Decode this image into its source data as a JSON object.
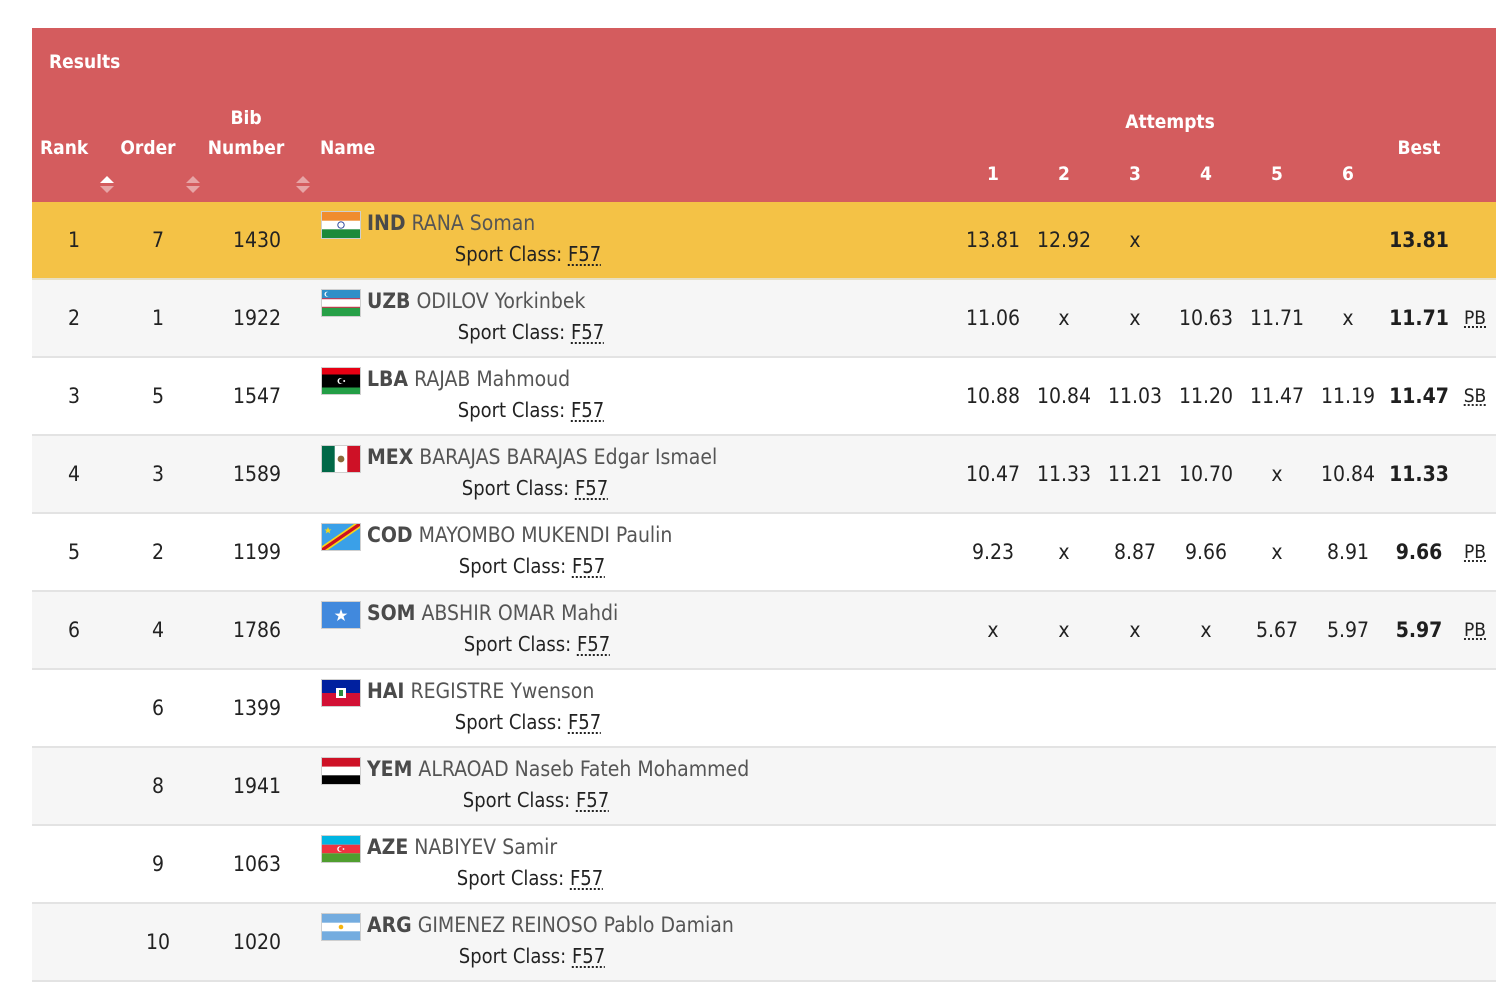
{
  "header": {
    "results_label": "Results",
    "rank": "Rank",
    "order": "Order",
    "bib_line1": "Bib",
    "bib_line2": "Number",
    "name": "Name",
    "attempts": "Attempts",
    "attempt_numbers": [
      "1",
      "2",
      "3",
      "4",
      "5",
      "6"
    ],
    "best": "Best"
  },
  "sport_class_label": "Sport Class:",
  "rows": [
    {
      "rank": "1",
      "order": "7",
      "bib": "1430",
      "noc": "IND",
      "athlete": "RANA Soman",
      "flag": "india-flag",
      "sport_class": "F57",
      "attempts": [
        "13.81",
        "12.92",
        "x",
        "",
        "",
        ""
      ],
      "best": "13.81",
      "record": ""
    },
    {
      "rank": "2",
      "order": "1",
      "bib": "1922",
      "noc": "UZB",
      "athlete": "ODILOV Yorkinbek",
      "flag": "uzbekistan-flag",
      "sport_class": "F57",
      "attempts": [
        "11.06",
        "x",
        "x",
        "10.63",
        "11.71",
        "x"
      ],
      "best": "11.71",
      "record": "PB"
    },
    {
      "rank": "3",
      "order": "5",
      "bib": "1547",
      "noc": "LBA",
      "athlete": "RAJAB Mahmoud",
      "flag": "libya-flag",
      "sport_class": "F57",
      "attempts": [
        "10.88",
        "10.84",
        "11.03",
        "11.20",
        "11.47",
        "11.19"
      ],
      "best": "11.47",
      "record": "SB"
    },
    {
      "rank": "4",
      "order": "3",
      "bib": "1589",
      "noc": "MEX",
      "athlete": "BARAJAS BARAJAS Edgar Ismael",
      "flag": "mexico-flag",
      "sport_class": "F57",
      "attempts": [
        "10.47",
        "11.33",
        "11.21",
        "10.70",
        "x",
        "10.84"
      ],
      "best": "11.33",
      "record": ""
    },
    {
      "rank": "5",
      "order": "2",
      "bib": "1199",
      "noc": "COD",
      "athlete": "MAYOMBO MUKENDI Paulin",
      "flag": "dr-congo-flag",
      "sport_class": "F57",
      "attempts": [
        "9.23",
        "x",
        "8.87",
        "9.66",
        "x",
        "8.91"
      ],
      "best": "9.66",
      "record": "PB"
    },
    {
      "rank": "6",
      "order": "4",
      "bib": "1786",
      "noc": "SOM",
      "athlete": "ABSHIR OMAR Mahdi",
      "flag": "somalia-flag",
      "sport_class": "F57",
      "attempts": [
        "x",
        "x",
        "x",
        "x",
        "5.67",
        "5.97"
      ],
      "best": "5.97",
      "record": "PB"
    },
    {
      "rank": "",
      "order": "6",
      "bib": "1399",
      "noc": "HAI",
      "athlete": "REGISTRE Ywenson",
      "flag": "haiti-flag",
      "sport_class": "F57",
      "attempts": [
        "",
        "",
        "",
        "",
        "",
        ""
      ],
      "best": "",
      "record": ""
    },
    {
      "rank": "",
      "order": "8",
      "bib": "1941",
      "noc": "YEM",
      "athlete": "ALRAOAD Naseb Fateh Mohammed",
      "flag": "yemen-flag",
      "sport_class": "F57",
      "attempts": [
        "",
        "",
        "",
        "",
        "",
        ""
      ],
      "best": "",
      "record": ""
    },
    {
      "rank": "",
      "order": "9",
      "bib": "1063",
      "noc": "AZE",
      "athlete": "NABIYEV Samir",
      "flag": "azerbaijan-flag",
      "sport_class": "F57",
      "attempts": [
        "",
        "",
        "",
        "",
        "",
        ""
      ],
      "best": "",
      "record": ""
    },
    {
      "rank": "",
      "order": "10",
      "bib": "1020",
      "noc": "ARG",
      "athlete": "GIMENEZ REINOSO Pablo Damian",
      "flag": "argentina-flag",
      "sport_class": "F57",
      "attempts": [
        "",
        "",
        "",
        "",
        "",
        ""
      ],
      "best": "",
      "record": ""
    }
  ],
  "colors": {
    "header_bg": "#d45c5e",
    "highlight_row": "#f4c246",
    "alt_row": "#f6f6f6"
  }
}
